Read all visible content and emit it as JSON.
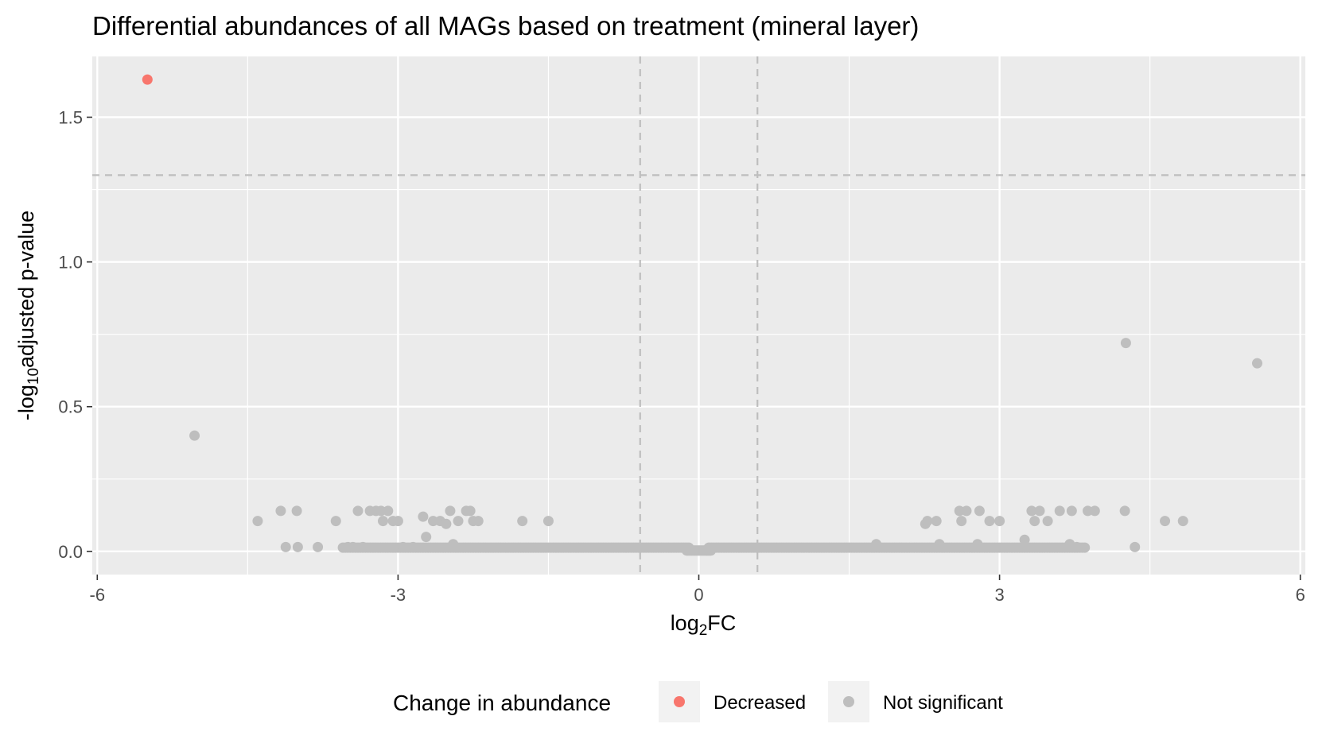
{
  "chart_data": {
    "type": "scatter",
    "title": "Differential abundances of all MAGs based on treatment (mineral layer)",
    "xlabel": {
      "base": "log",
      "sub": "2",
      "rest": "FC"
    },
    "ylabel": {
      "pre": "-log",
      "sub": "10",
      "rest": "adjusted p-value"
    },
    "xlim": [
      -6.05,
      6.05
    ],
    "ylim": [
      -0.08,
      1.71
    ],
    "x_ticks": [
      -6,
      -3,
      0,
      3,
      6
    ],
    "x_tick_labels": [
      "-6",
      "-3",
      "0",
      "3",
      "6"
    ],
    "y_ticks": [
      0,
      0.5,
      1,
      1.5
    ],
    "y_tick_labels": [
      "0.0",
      "0.5",
      "1.0",
      "1.5"
    ],
    "thresholds": {
      "x": [
        -0.585,
        0.585
      ],
      "y": 1.3
    },
    "grid": true,
    "legend": {
      "title": "Change in abundance",
      "position": "bottom",
      "entries": [
        {
          "name": "Decreased",
          "color": "#F8766D"
        },
        {
          "name": "Not significant",
          "color": "#BEBEBE"
        }
      ]
    },
    "series": [
      {
        "name": "Decreased",
        "color": "#F8766D",
        "points": [
          [
            -5.5,
            1.63
          ]
        ]
      },
      {
        "name": "Not significant",
        "color": "#BEBEBE",
        "points": [
          [
            -5.03,
            0.4
          ],
          [
            4.26,
            0.72
          ],
          [
            5.57,
            0.65
          ],
          [
            -4.4,
            0.105
          ],
          [
            -4.17,
            0.14
          ],
          [
            -4.12,
            0.015
          ],
          [
            -4.01,
            0.14
          ],
          [
            -4.0,
            0.015
          ],
          [
            -3.8,
            0.015
          ],
          [
            -3.62,
            0.105
          ],
          [
            -3.5,
            0.015
          ],
          [
            -3.45,
            0.015
          ],
          [
            -3.4,
            0.14
          ],
          [
            -3.35,
            0.015
          ],
          [
            -3.28,
            0.14
          ],
          [
            -3.22,
            0.14
          ],
          [
            -3.17,
            0.14
          ],
          [
            -3.15,
            0.105
          ],
          [
            -3.1,
            0.14
          ],
          [
            -3.05,
            0.105
          ],
          [
            -3.0,
            0.105
          ],
          [
            -2.95,
            0.015
          ],
          [
            -2.85,
            0.015
          ],
          [
            -2.75,
            0.12
          ],
          [
            -2.72,
            0.05
          ],
          [
            -2.65,
            0.105
          ],
          [
            -2.58,
            0.105
          ],
          [
            -2.52,
            0.095
          ],
          [
            -2.48,
            0.14
          ],
          [
            -2.45,
            0.025
          ],
          [
            -2.4,
            0.105
          ],
          [
            -2.32,
            0.14
          ],
          [
            -2.28,
            0.14
          ],
          [
            -2.25,
            0.105
          ],
          [
            -2.2,
            0.105
          ],
          [
            -1.76,
            0.105
          ],
          [
            -1.5,
            0.105
          ],
          [
            2.26,
            0.095
          ],
          [
            2.28,
            0.105
          ],
          [
            2.37,
            0.105
          ],
          [
            2.4,
            0.025
          ],
          [
            2.6,
            0.14
          ],
          [
            2.62,
            0.105
          ],
          [
            2.67,
            0.14
          ],
          [
            2.78,
            0.025
          ],
          [
            2.8,
            0.14
          ],
          [
            2.9,
            0.105
          ],
          [
            3.0,
            0.105
          ],
          [
            3.25,
            0.04
          ],
          [
            3.32,
            0.14
          ],
          [
            3.35,
            0.105
          ],
          [
            3.4,
            0.14
          ],
          [
            3.48,
            0.105
          ],
          [
            3.6,
            0.14
          ],
          [
            3.72,
            0.14
          ],
          [
            3.7,
            0.025
          ],
          [
            3.77,
            0.015
          ],
          [
            3.88,
            0.14
          ],
          [
            3.95,
            0.14
          ],
          [
            4.25,
            0.14
          ],
          [
            4.35,
            0.015
          ],
          [
            4.65,
            0.105
          ],
          [
            4.83,
            0.105
          ],
          [
            1.77,
            0.025
          ]
        ],
        "dense_band": [
          {
            "x_from": -3.55,
            "x_to": -0.1,
            "step": 0.025,
            "y": 0.013
          },
          {
            "x_from": 0.1,
            "x_to": 3.85,
            "step": 0.025,
            "y": 0.013
          },
          {
            "x_from": -0.12,
            "x_to": 0.12,
            "step": 0.012,
            "y": 0.003
          }
        ]
      }
    ]
  }
}
